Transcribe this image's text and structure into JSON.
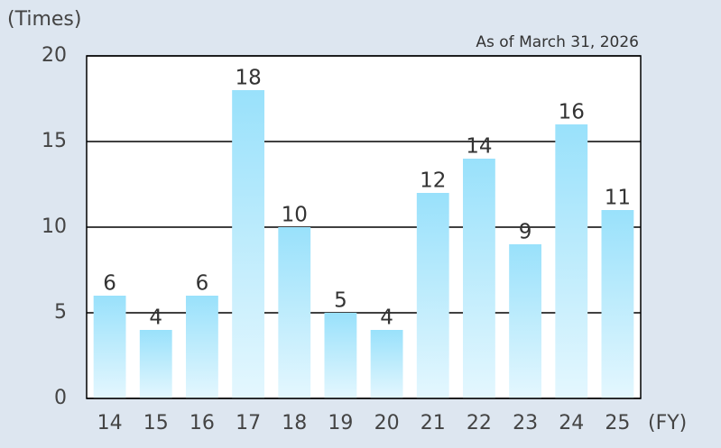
{
  "chart_data": {
    "type": "bar",
    "y_label": "(Times)",
    "x_label": "(FY)",
    "annotation": "As of March 31, 2026",
    "categories": [
      "14",
      "15",
      "16",
      "17",
      "18",
      "19",
      "20",
      "21",
      "22",
      "23",
      "24",
      "25"
    ],
    "values": [
      6,
      4,
      6,
      18,
      10,
      5,
      4,
      12,
      14,
      9,
      16,
      11
    ],
    "color": "#99e1fb",
    "ylim": [
      0,
      20
    ],
    "yticks": [
      0,
      5,
      10,
      15,
      20
    ],
    "grid": true
  }
}
